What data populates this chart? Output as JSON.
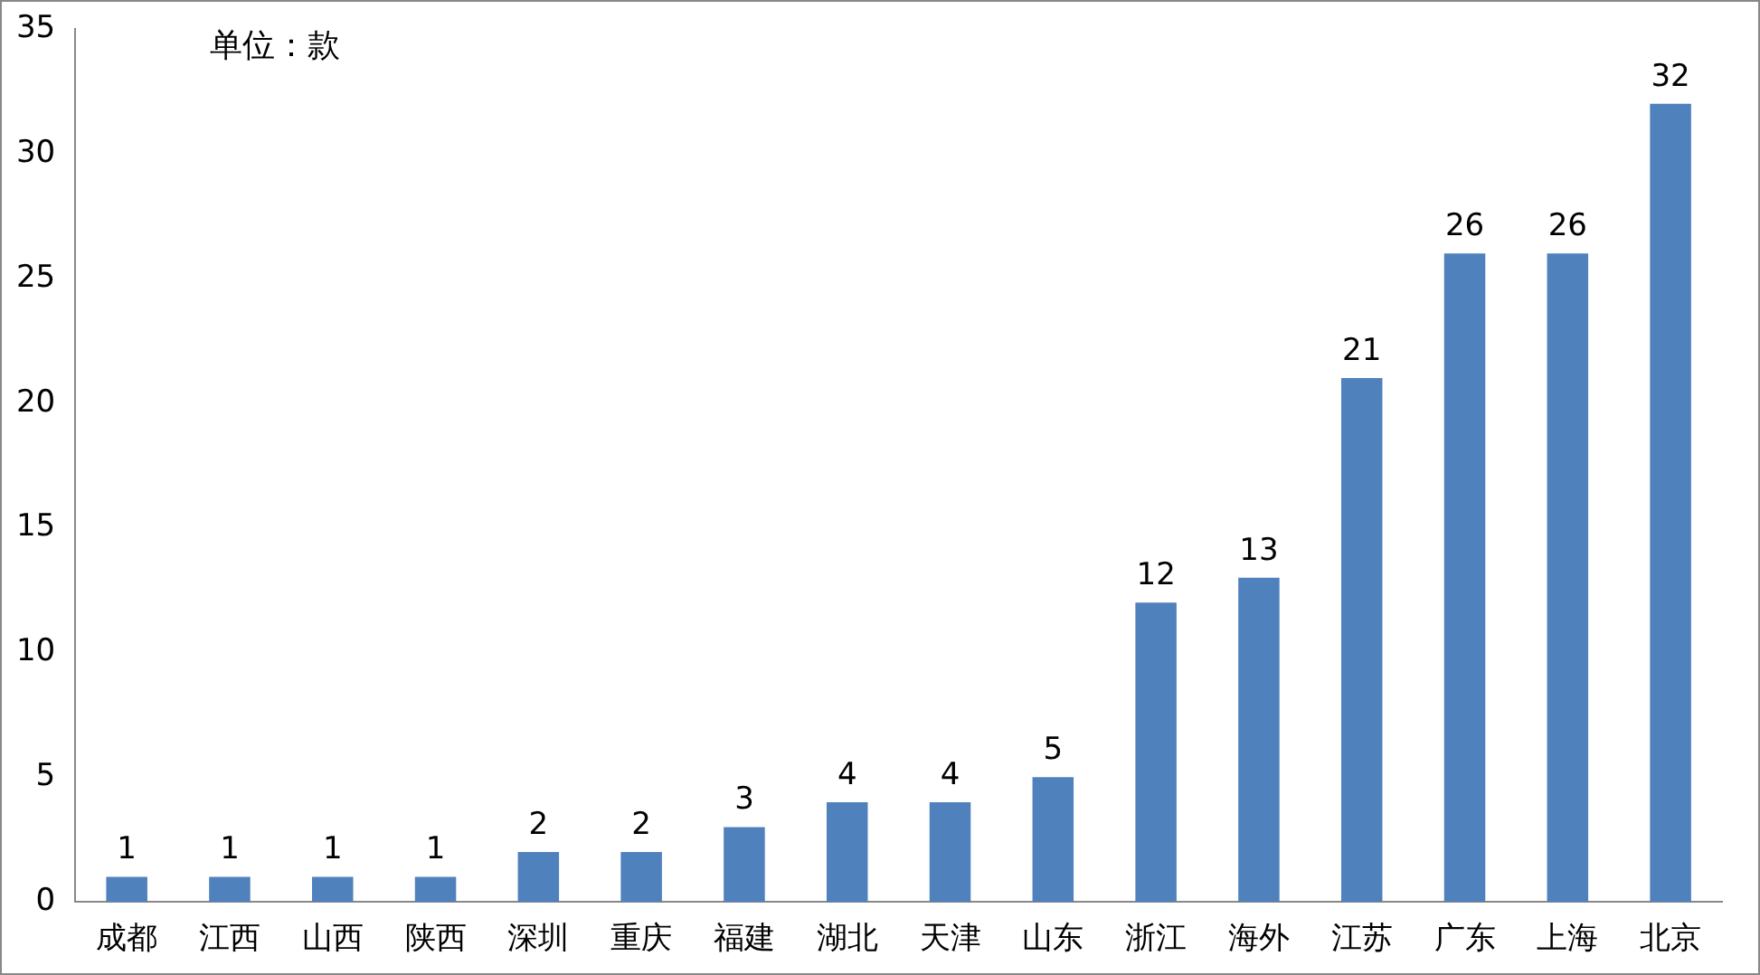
{
  "chart_data": {
    "type": "bar",
    "annotations": [
      "单位：款"
    ],
    "categories": [
      "成都",
      "江西",
      "山西",
      "陕西",
      "深圳",
      "重庆",
      "福建",
      "湖北",
      "天津",
      "山东",
      "浙江",
      "海外",
      "江苏",
      "广东",
      "上海",
      "北京"
    ],
    "values": [
      1,
      1,
      1,
      1,
      2,
      2,
      3,
      4,
      4,
      5,
      12,
      13,
      21,
      26,
      26,
      32
    ],
    "color": "#4f81bd",
    "ylim": [
      0,
      35
    ],
    "yticks": [
      0,
      5,
      10,
      15,
      20,
      25,
      30,
      35
    ],
    "grid": false,
    "legend": false,
    "data_labels": true
  }
}
